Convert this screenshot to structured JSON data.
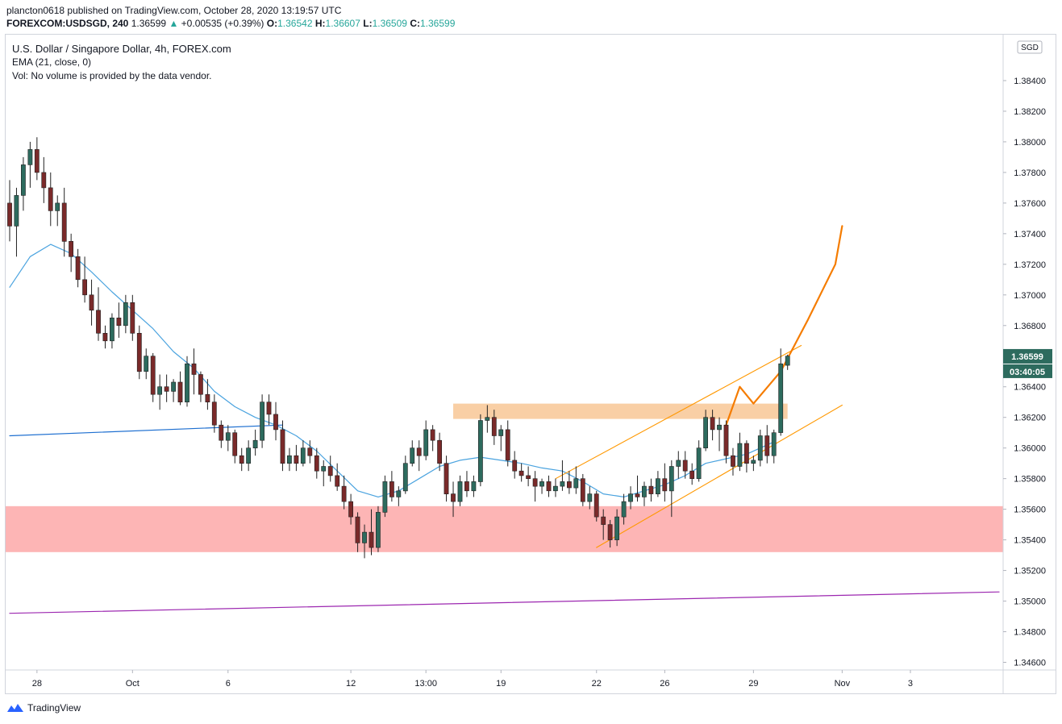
{
  "header": {
    "publisher_line": "plancton0618 published on TradingView.com, October 28, 2020 13:19:57 UTC",
    "symbol": "FOREXCOM:USDSGD, 240",
    "last": "1.36599",
    "change_arrow": "▲",
    "change": "+0.00535 (+0.39%)",
    "o_label": "O:",
    "o": "1.36542",
    "h_label": "H:",
    "h": "1.36607",
    "l_label": "L:",
    "l": "1.36509",
    "c_label": "C:",
    "c": "1.36599"
  },
  "legend": {
    "title": "U.S. Dollar / Singapore Dollar, 4h, FOREX.com",
    "ema": "EMA (21, close, 0)",
    "vol": "Vol: No volume is provided by the data vendor."
  },
  "footer": {
    "brand": "TradingView",
    "logo_icon": "tradingview-logo-icon"
  },
  "colors": {
    "up": "#26a69a",
    "down": "#ef5350",
    "up_body": "#2d6b5e",
    "down_body": "#7a2a2a",
    "ema": "#4aa3df",
    "orange": "#f57c00",
    "channel": "#ff9800",
    "resistance_zone": "#f9cfa5",
    "support_zone": "#fdb5b5",
    "trend_blue": "#1e6fd0",
    "trend_purple": "#9c27b0"
  },
  "chart_data": {
    "type": "candlestick",
    "title": "U.S. Dollar / Singapore Dollar, 4h, FOREX.com",
    "currency_label": "SGD",
    "ylim": [
      1.3455,
      1.387
    ],
    "y_ticks": [
      "1.38400",
      "1.38200",
      "1.38000",
      "1.37800",
      "1.37600",
      "1.37400",
      "1.37200",
      "1.37000",
      "1.36800",
      "1.36600",
      "1.36400",
      "1.36200",
      "1.36000",
      "1.35800",
      "1.35600",
      "1.35400",
      "1.35200",
      "1.35000",
      "1.34800",
      "1.34600"
    ],
    "x_range": [
      0,
      145
    ],
    "x_ticks": [
      {
        "label": "28",
        "i": 4
      },
      {
        "label": "Oct",
        "i": 18
      },
      {
        "label": "6",
        "i": 32
      },
      {
        "label": "12",
        "i": 50
      },
      {
        "label": "13:00",
        "i": 61
      },
      {
        "label": "19",
        "i": 72
      },
      {
        "label": "22",
        "i": 86
      },
      {
        "label": "26",
        "i": 96
      },
      {
        "label": "29",
        "i": 109
      },
      {
        "label": "Nov",
        "i": 122
      },
      {
        "label": "3",
        "i": 132
      }
    ],
    "last_price_label": "1.36599",
    "countdown_label": "03:40:05",
    "last_price": 1.36599,
    "candles": [
      [
        1.376,
        1.3775,
        1.3735,
        1.3745
      ],
      [
        1.3745,
        1.377,
        1.3725,
        1.3765
      ],
      [
        1.3765,
        1.379,
        1.3755,
        1.3785
      ],
      [
        1.3785,
        1.38,
        1.377,
        1.3795
      ],
      [
        1.3795,
        1.3803,
        1.3775,
        1.378
      ],
      [
        1.378,
        1.379,
        1.376,
        1.377
      ],
      [
        1.377,
        1.378,
        1.3745,
        1.3755
      ],
      [
        1.3755,
        1.3765,
        1.3745,
        1.376
      ],
      [
        1.376,
        1.377,
        1.3725,
        1.3735
      ],
      [
        1.3735,
        1.374,
        1.3715,
        1.3725
      ],
      [
        1.3725,
        1.373,
        1.3705,
        1.371
      ],
      [
        1.371,
        1.3725,
        1.3695,
        1.37
      ],
      [
        1.37,
        1.371,
        1.368,
        1.369
      ],
      [
        1.369,
        1.3705,
        1.367,
        1.3675
      ],
      [
        1.3675,
        1.368,
        1.3665,
        1.367
      ],
      [
        1.367,
        1.3688,
        1.3665,
        1.3685
      ],
      [
        1.3685,
        1.3695,
        1.3672,
        1.368
      ],
      [
        1.368,
        1.37,
        1.3675,
        1.3695
      ],
      [
        1.3695,
        1.37,
        1.367,
        1.3675
      ],
      [
        1.3675,
        1.368,
        1.3645,
        1.365
      ],
      [
        1.365,
        1.3665,
        1.3645,
        1.366
      ],
      [
        1.366,
        1.3662,
        1.363,
        1.3635
      ],
      [
        1.3635,
        1.3648,
        1.3625,
        1.364
      ],
      [
        1.364,
        1.3648,
        1.363,
        1.3637
      ],
      [
        1.3637,
        1.3645,
        1.363,
        1.3643
      ],
      [
        1.3643,
        1.365,
        1.3628,
        1.363
      ],
      [
        1.363,
        1.366,
        1.3627,
        1.3655
      ],
      [
        1.3655,
        1.3665,
        1.3635,
        1.3648
      ],
      [
        1.3648,
        1.365,
        1.363,
        1.3635
      ],
      [
        1.3635,
        1.3645,
        1.3625,
        1.363
      ],
      [
        1.363,
        1.3635,
        1.361,
        1.3615
      ],
      [
        1.3615,
        1.3618,
        1.36,
        1.3605
      ],
      [
        1.3605,
        1.3615,
        1.3598,
        1.361
      ],
      [
        1.361,
        1.3612,
        1.359,
        1.3595
      ],
      [
        1.3595,
        1.36,
        1.3585,
        1.359
      ],
      [
        1.359,
        1.3605,
        1.3585,
        1.36
      ],
      [
        1.36,
        1.3612,
        1.3595,
        1.3605
      ],
      [
        1.3605,
        1.3635,
        1.36,
        1.363
      ],
      [
        1.363,
        1.3635,
        1.3615,
        1.3622
      ],
      [
        1.3622,
        1.363,
        1.3605,
        1.3612
      ],
      [
        1.3612,
        1.3618,
        1.3585,
        1.359
      ],
      [
        1.359,
        1.36,
        1.3585,
        1.3595
      ],
      [
        1.3595,
        1.3602,
        1.3585,
        1.359
      ],
      [
        1.359,
        1.3605,
        1.3588,
        1.36
      ],
      [
        1.36,
        1.3605,
        1.359,
        1.3595
      ],
      [
        1.3595,
        1.36,
        1.358,
        1.3585
      ],
      [
        1.3585,
        1.3592,
        1.3575,
        1.3588
      ],
      [
        1.3588,
        1.3595,
        1.3578,
        1.3582
      ],
      [
        1.3582,
        1.359,
        1.3572,
        1.3575
      ],
      [
        1.3575,
        1.3582,
        1.356,
        1.3565
      ],
      [
        1.3565,
        1.357,
        1.355,
        1.3555
      ],
      [
        1.3555,
        1.3558,
        1.3532,
        1.3538
      ],
      [
        1.3538,
        1.355,
        1.3528,
        1.3545
      ],
      [
        1.3545,
        1.356,
        1.353,
        1.3535
      ],
      [
        1.3535,
        1.3562,
        1.3532,
        1.3558
      ],
      [
        1.3558,
        1.3582,
        1.3555,
        1.3578
      ],
      [
        1.3578,
        1.3585,
        1.3565,
        1.3568
      ],
      [
        1.3568,
        1.3575,
        1.3562,
        1.3572
      ],
      [
        1.3572,
        1.3595,
        1.357,
        1.359
      ],
      [
        1.359,
        1.3605,
        1.3588,
        1.36
      ],
      [
        1.36,
        1.3605,
        1.3585,
        1.3595
      ],
      [
        1.3595,
        1.3618,
        1.3592,
        1.3612
      ],
      [
        1.3612,
        1.3615,
        1.3598,
        1.3605
      ],
      [
        1.3605,
        1.361,
        1.3585,
        1.359
      ],
      [
        1.359,
        1.3595,
        1.3565,
        1.357
      ],
      [
        1.357,
        1.3578,
        1.3555,
        1.3565
      ],
      [
        1.3565,
        1.3582,
        1.3562,
        1.3578
      ],
      [
        1.3578,
        1.3585,
        1.3568,
        1.3572
      ],
      [
        1.3572,
        1.3582,
        1.3568,
        1.3578
      ],
      [
        1.3578,
        1.3622,
        1.3575,
        1.3618
      ],
      [
        1.3618,
        1.3628,
        1.361,
        1.362
      ],
      [
        1.362,
        1.3625,
        1.3602,
        1.3608
      ],
      [
        1.3608,
        1.3615,
        1.3598,
        1.3612
      ],
      [
        1.3612,
        1.3618,
        1.3588,
        1.3592
      ],
      [
        1.3592,
        1.3598,
        1.358,
        1.3585
      ],
      [
        1.3585,
        1.359,
        1.3578,
        1.3582
      ],
      [
        1.3582,
        1.3588,
        1.3575,
        1.358
      ],
      [
        1.358,
        1.3585,
        1.3565,
        1.3575
      ],
      [
        1.3575,
        1.358,
        1.357,
        1.3578
      ],
      [
        1.3578,
        1.3582,
        1.3568,
        1.3572
      ],
      [
        1.3572,
        1.358,
        1.3568,
        1.3575
      ],
      [
        1.3575,
        1.3592,
        1.3572,
        1.3578
      ],
      [
        1.3578,
        1.3585,
        1.357,
        1.3574
      ],
      [
        1.3574,
        1.3588,
        1.357,
        1.358
      ],
      [
        1.358,
        1.3583,
        1.3562,
        1.3565
      ],
      [
        1.3565,
        1.3575,
        1.356,
        1.357
      ],
      [
        1.357,
        1.3572,
        1.3552,
        1.3555
      ],
      [
        1.3555,
        1.356,
        1.354,
        1.355
      ],
      [
        1.355,
        1.3553,
        1.3535,
        1.354
      ],
      [
        1.354,
        1.356,
        1.3536,
        1.3555
      ],
      [
        1.3555,
        1.357,
        1.355,
        1.3565
      ],
      [
        1.3565,
        1.3575,
        1.356,
        1.357
      ],
      [
        1.357,
        1.3582,
        1.3565,
        1.3568
      ],
      [
        1.3568,
        1.3578,
        1.3562,
        1.3575
      ],
      [
        1.3575,
        1.358,
        1.3565,
        1.357
      ],
      [
        1.357,
        1.3585,
        1.3568,
        1.358
      ],
      [
        1.358,
        1.359,
        1.3565,
        1.3572
      ],
      [
        1.3572,
        1.3592,
        1.3555,
        1.3588
      ],
      [
        1.3588,
        1.3598,
        1.358,
        1.3592
      ],
      [
        1.3592,
        1.3598,
        1.358,
        1.3585
      ],
      [
        1.3585,
        1.359,
        1.3576,
        1.358
      ],
      [
        1.358,
        1.3605,
        1.3578,
        1.36
      ],
      [
        1.36,
        1.3625,
        1.3598,
        1.362
      ],
      [
        1.362,
        1.3625,
        1.3605,
        1.3612
      ],
      [
        1.3612,
        1.362,
        1.3598,
        1.3615
      ],
      [
        1.3615,
        1.3618,
        1.359,
        1.3595
      ],
      [
        1.3595,
        1.36,
        1.3582,
        1.3588
      ],
      [
        1.3588,
        1.361,
        1.3585,
        1.3603
      ],
      [
        1.3603,
        1.3605,
        1.3584,
        1.359
      ],
      [
        1.359,
        1.3595,
        1.3585,
        1.3592
      ],
      [
        1.3592,
        1.3612,
        1.3588,
        1.3608
      ],
      [
        1.3608,
        1.3615,
        1.359,
        1.3595
      ],
      [
        1.3595,
        1.3612,
        1.359,
        1.361
      ],
      [
        1.361,
        1.3665,
        1.3608,
        1.3655
      ],
      [
        1.3654,
        1.3661,
        1.3651,
        1.366
      ]
    ],
    "ema21": [
      [
        0,
        1.3705
      ],
      [
        3,
        1.3725
      ],
      [
        6,
        1.3733
      ],
      [
        9,
        1.3727
      ],
      [
        12,
        1.3715
      ],
      [
        15,
        1.3702
      ],
      [
        18,
        1.369
      ],
      [
        21,
        1.3678
      ],
      [
        24,
        1.3663
      ],
      [
        27,
        1.3652
      ],
      [
        30,
        1.3637
      ],
      [
        33,
        1.3627
      ],
      [
        36,
        1.362
      ],
      [
        39,
        1.3615
      ],
      [
        42,
        1.3608
      ],
      [
        45,
        1.3598
      ],
      [
        48,
        1.3585
      ],
      [
        51,
        1.3572
      ],
      [
        54,
        1.3568
      ],
      [
        57,
        1.3572
      ],
      [
        60,
        1.358
      ],
      [
        63,
        1.3588
      ],
      [
        66,
        1.3592
      ],
      [
        69,
        1.3594
      ],
      [
        72,
        1.3592
      ],
      [
        75,
        1.359
      ],
      [
        78,
        1.3587
      ],
      [
        81,
        1.3585
      ],
      [
        84,
        1.3578
      ],
      [
        87,
        1.357
      ],
      [
        90,
        1.3568
      ],
      [
        93,
        1.3572
      ],
      [
        96,
        1.3576
      ],
      [
        99,
        1.3582
      ],
      [
        102,
        1.359
      ],
      [
        105,
        1.3593
      ],
      [
        108,
        1.3596
      ],
      [
        110,
        1.36
      ],
      [
        112,
        1.3604
      ]
    ],
    "support_zone": {
      "from": 1.3532,
      "to": 1.3562,
      "i_start": 0,
      "i_end": 145
    },
    "resistance_zone": {
      "from": 1.3619,
      "to": 1.3629,
      "i_start": 65,
      "i_end": 114
    },
    "blue_trend": [
      [
        0,
        1.3608
      ],
      [
        40,
        1.3615
      ]
    ],
    "purple_trend": [
      [
        0,
        1.3492
      ],
      [
        145,
        1.3506
      ]
    ],
    "channel_upper": [
      [
        80,
        1.358
      ],
      [
        116,
        1.3667
      ]
    ],
    "channel_lower": [
      [
        86,
        1.3535
      ],
      [
        122,
        1.3628
      ]
    ],
    "projection": [
      [
        105,
        1.3615
      ],
      [
        107,
        1.364
      ],
      [
        109,
        1.3629
      ],
      [
        113,
        1.365
      ],
      [
        117,
        1.3684
      ],
      [
        121,
        1.372
      ],
      [
        122,
        1.3745
      ]
    ]
  }
}
